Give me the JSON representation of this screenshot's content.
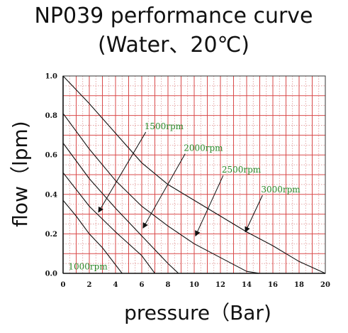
{
  "chart_data": {
    "type": "line",
    "title": "NP039 performance curve",
    "subtitle": "(Water、20℃)",
    "xlabel": "pressure（Bar)",
    "ylabel": "flow（lpm)",
    "xlim": [
      0,
      20
    ],
    "ylim": [
      0,
      1.0
    ],
    "x_ticks": [
      "0",
      "2",
      "4",
      "6",
      "8",
      "10",
      "12",
      "14",
      "16",
      "18",
      "20"
    ],
    "y_ticks": [
      "0.0",
      "0.2",
      "0.4",
      "0.6",
      "0.8",
      "1.0"
    ],
    "grid": true,
    "series": [
      {
        "name": "1000rpm",
        "points": [
          [
            0,
            0.37
          ],
          [
            1,
            0.29
          ],
          [
            2,
            0.2
          ],
          [
            3,
            0.13
          ],
          [
            4.5,
            0.0
          ]
        ]
      },
      {
        "name": "1500rpm",
        "points": [
          [
            0,
            0.51
          ],
          [
            2,
            0.34
          ],
          [
            4,
            0.21
          ],
          [
            6,
            0.09
          ],
          [
            7,
            0.0
          ]
        ]
      },
      {
        "name": "2000rpm",
        "points": [
          [
            0,
            0.66
          ],
          [
            2,
            0.48
          ],
          [
            4,
            0.33
          ],
          [
            6,
            0.19
          ],
          [
            8,
            0.05
          ],
          [
            8.8,
            0.0
          ]
        ]
      },
      {
        "name": "2500rpm",
        "points": [
          [
            0,
            0.81
          ],
          [
            2,
            0.63
          ],
          [
            4,
            0.47
          ],
          [
            6,
            0.34
          ],
          [
            8,
            0.24
          ],
          [
            10,
            0.15
          ],
          [
            12,
            0.08
          ],
          [
            14,
            0.01
          ],
          [
            15,
            0.0
          ]
        ]
      },
      {
        "name": "3000rpm",
        "points": [
          [
            0,
            1.0
          ],
          [
            2,
            0.86
          ],
          [
            4,
            0.71
          ],
          [
            6,
            0.56
          ],
          [
            8,
            0.45
          ],
          [
            10,
            0.37
          ],
          [
            12,
            0.29
          ],
          [
            14,
            0.21
          ],
          [
            16,
            0.14
          ],
          [
            18,
            0.06
          ],
          [
            20,
            0.0
          ]
        ]
      }
    ],
    "annotations": [
      {
        "series": "1000rpm",
        "text": "1000rpm",
        "point": [
          0.4,
          0.02
        ]
      },
      {
        "series": "1500rpm",
        "text": "1500rpm",
        "point": [
          6.2,
          0.73
        ],
        "arrow_to": [
          2.7,
          0.31
        ]
      },
      {
        "series": "2000rpm",
        "text": "2000rpm",
        "point": [
          9.2,
          0.62
        ],
        "arrow_to": [
          6.1,
          0.23
        ]
      },
      {
        "series": "2500rpm",
        "text": "2500rpm",
        "point": [
          12.1,
          0.51
        ],
        "arrow_to": [
          10.1,
          0.19
        ]
      },
      {
        "series": "3000rpm",
        "text": "3000rpm",
        "point": [
          15.1,
          0.41
        ],
        "arrow_to": [
          13.9,
          0.21
        ]
      }
    ]
  }
}
